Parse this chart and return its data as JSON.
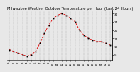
{
  "title": "Milwaukee Weather Outdoor Temperature per Hour (Last 24 Hours)",
  "hours": [
    0,
    1,
    2,
    3,
    4,
    5,
    6,
    7,
    8,
    9,
    10,
    11,
    12,
    13,
    14,
    15,
    16,
    17,
    18,
    19,
    20,
    21,
    22,
    23
  ],
  "temps": [
    8,
    7,
    6,
    5,
    4,
    5,
    7,
    12,
    18,
    23,
    27,
    29,
    30,
    29,
    27,
    25,
    20,
    17,
    15,
    14,
    13,
    13,
    12,
    11
  ],
  "line_color": "#dd0000",
  "marker_color": "#000000",
  "bg_color": "#e8e8e8",
  "plot_bg_color": "#e8e8e8",
  "grid_color": "#888888",
  "ylim": [
    2,
    32
  ],
  "ytick_vals": [
    5,
    10,
    15,
    20,
    25,
    30
  ],
  "ytick_labels": [
    "5",
    "10",
    "15",
    "20",
    "25",
    "30"
  ],
  "title_fontsize": 3.8,
  "tick_fontsize": 3.0
}
